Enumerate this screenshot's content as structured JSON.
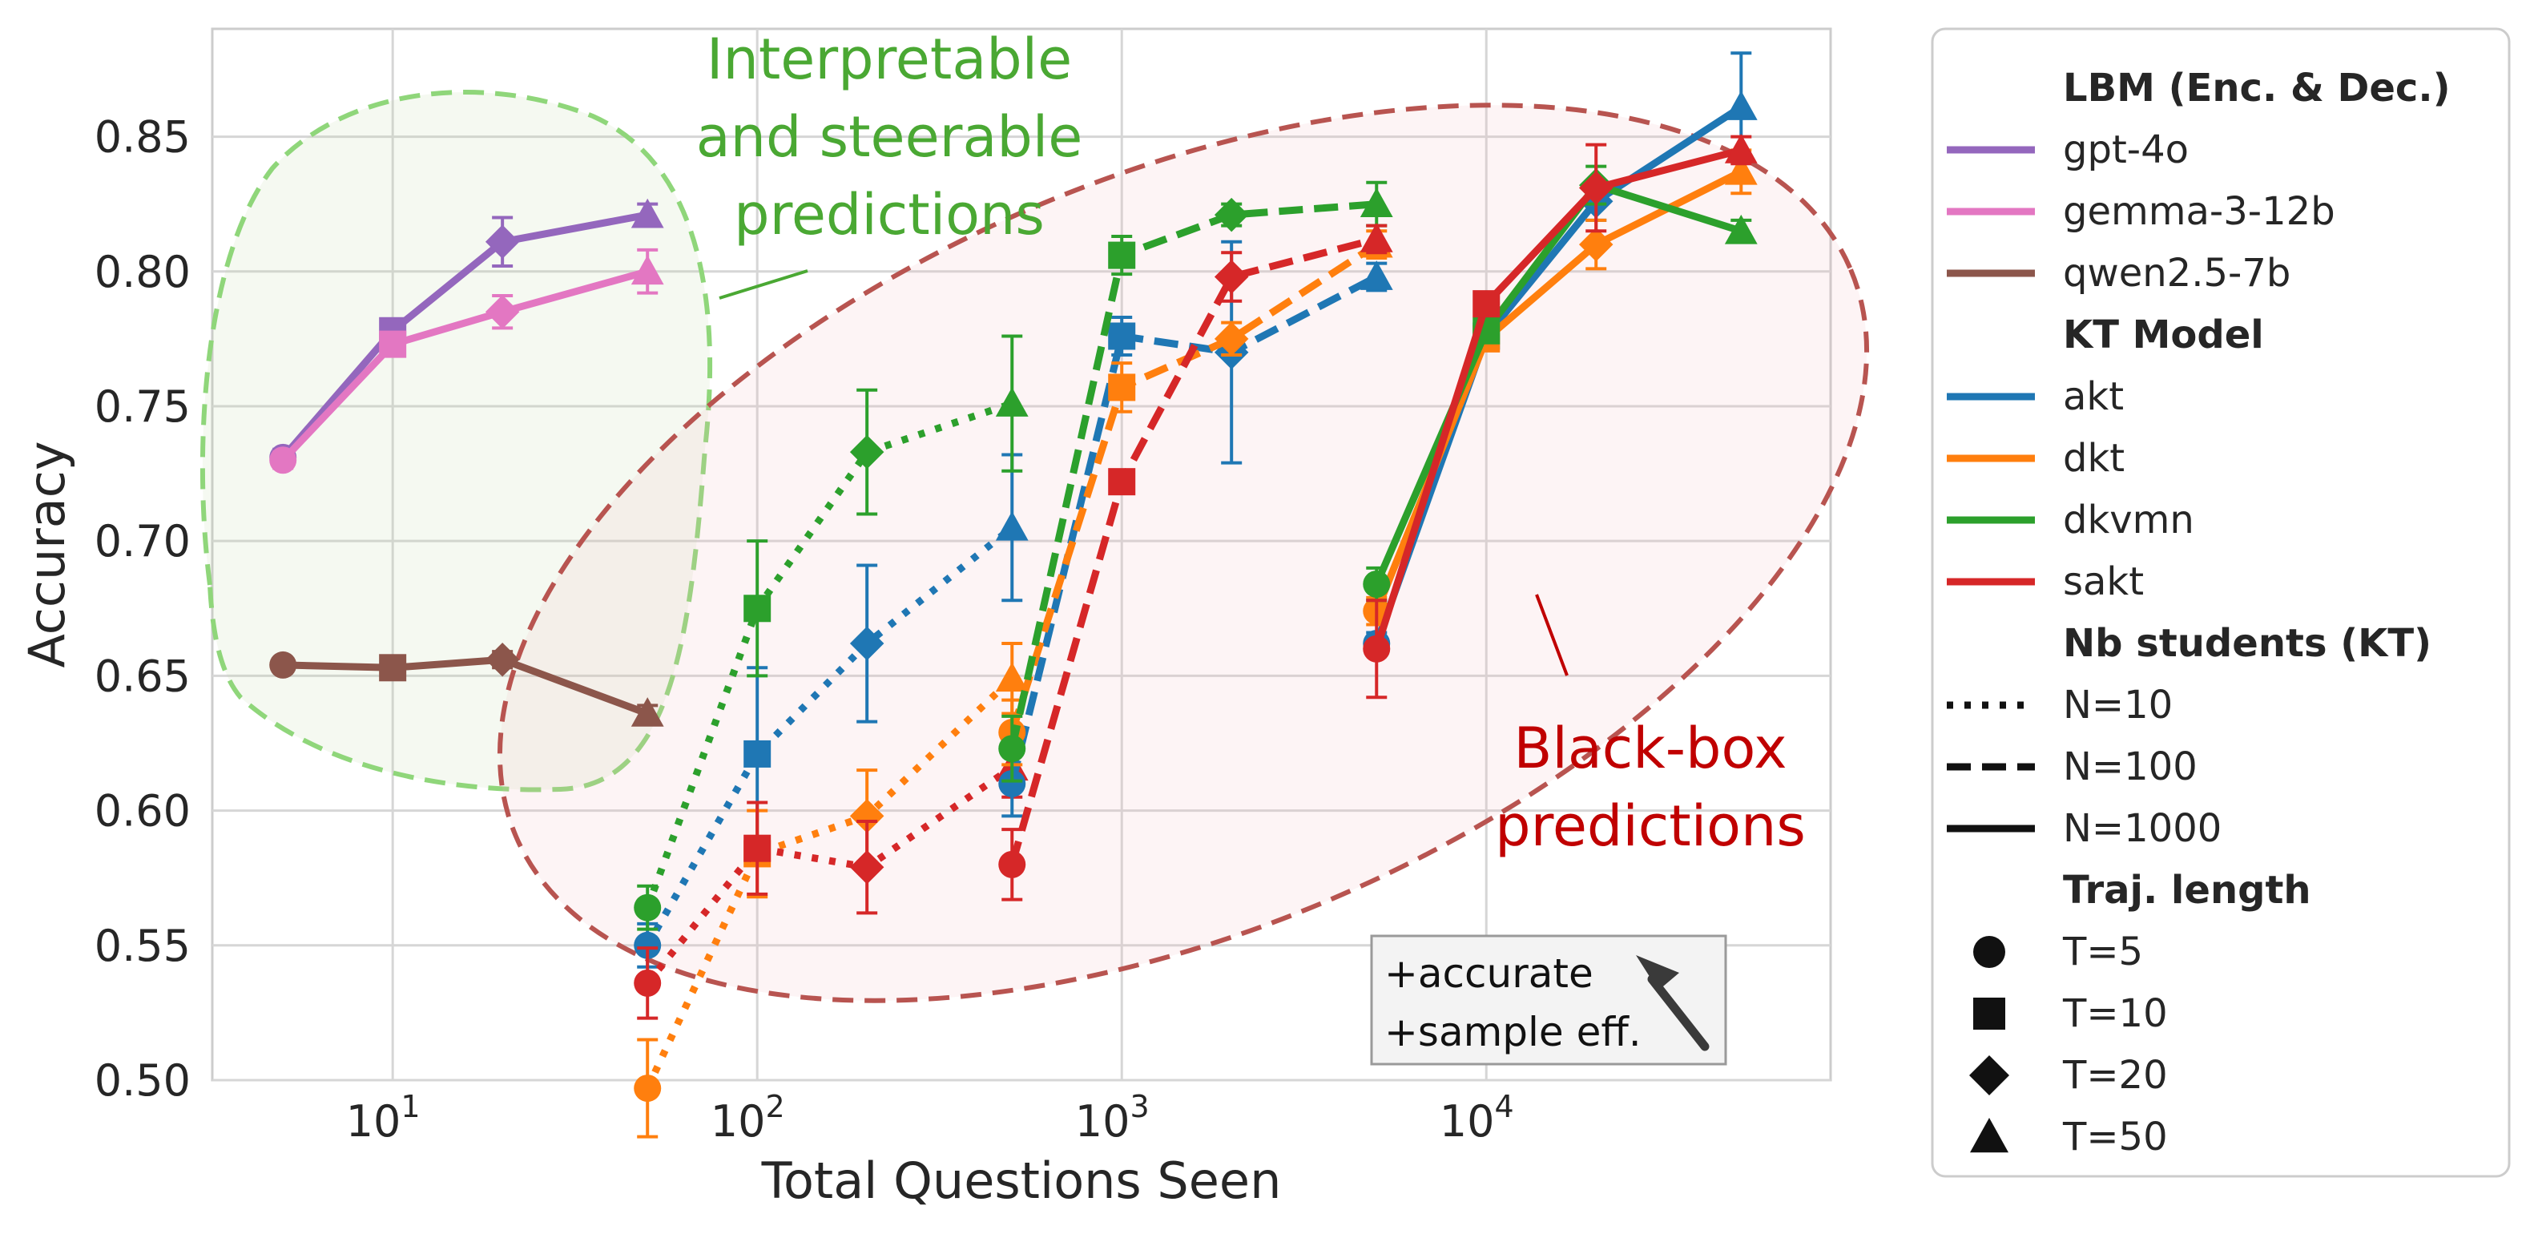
{
  "chart_data": {
    "type": "line",
    "xlabel": "Total Questions Seen",
    "ylabel": "Accuracy",
    "xscale": "log",
    "xlim": [
      3.2,
      88000
    ],
    "ylim": [
      0.5,
      0.89
    ],
    "grid": true,
    "x_ticks": [
      {
        "value": 10,
        "mantissa": "10",
        "exp": "1"
      },
      {
        "value": 100,
        "mantissa": "10",
        "exp": "2"
      },
      {
        "value": 1000,
        "mantissa": "10",
        "exp": "3"
      },
      {
        "value": 10000,
        "mantissa": "10",
        "exp": "4"
      }
    ],
    "y_ticks": [
      {
        "value": 0.5,
        "label": "0.50"
      },
      {
        "value": 0.55,
        "label": "0.55"
      },
      {
        "value": 0.6,
        "label": "0.60"
      },
      {
        "value": 0.65,
        "label": "0.65"
      },
      {
        "value": 0.7,
        "label": "0.70"
      },
      {
        "value": 0.75,
        "label": "0.75"
      },
      {
        "value": 0.8,
        "label": "0.80"
      },
      {
        "value": 0.85,
        "label": "0.85"
      }
    ],
    "annotations": {
      "interpretable": [
        "Interpretable",
        "and steerable",
        "predictions"
      ],
      "blackbox": [
        "Black-box",
        "predictions"
      ],
      "box": [
        "+accurate",
        "+sample eff."
      ]
    },
    "legend": {
      "placement": "outside right",
      "groups": [
        {
          "title": "LBM (Enc. & Dec.)",
          "entries": [
            {
              "label": "gpt-4o",
              "kind": "color",
              "color": "#9467bd"
            },
            {
              "label": "gemma-3-12b",
              "kind": "color",
              "color": "#e377c2"
            },
            {
              "label": "qwen2.5-7b",
              "kind": "color",
              "color": "#8c564b"
            }
          ]
        },
        {
          "title": "KT Model",
          "entries": [
            {
              "label": "akt",
              "kind": "color",
              "color": "#1f77b4"
            },
            {
              "label": "dkt",
              "kind": "color",
              "color": "#ff7f0e"
            },
            {
              "label": "dkvmn",
              "kind": "color",
              "color": "#2ca02c"
            },
            {
              "label": "sakt",
              "kind": "color",
              "color": "#d62728"
            }
          ]
        },
        {
          "title": "Nb students (KT)",
          "entries": [
            {
              "label": "N=10",
              "kind": "dash",
              "dash": "dotted"
            },
            {
              "label": "N=100",
              "kind": "dash",
              "dash": "dashed"
            },
            {
              "label": "N=1000",
              "kind": "dash",
              "dash": "solid"
            }
          ]
        },
        {
          "title": "Traj. length",
          "entries": [
            {
              "label": "T=5",
              "kind": "marker",
              "marker": "circle"
            },
            {
              "label": "T=10",
              "kind": "marker",
              "marker": "square"
            },
            {
              "label": "T=20",
              "kind": "marker",
              "marker": "diamond"
            },
            {
              "label": "T=50",
              "kind": "marker",
              "marker": "triangle"
            }
          ]
        }
      ]
    },
    "series": [
      {
        "name": "gpt-4o",
        "color": "#9467bd",
        "dash": "solid",
        "points": [
          {
            "x": 5,
            "y": 0.731,
            "marker": "circle",
            "err": 0.003
          },
          {
            "x": 10,
            "y": 0.778,
            "marker": "square",
            "err": 0.004
          },
          {
            "x": 20,
            "y": 0.811,
            "marker": "diamond",
            "err": 0.009
          },
          {
            "x": 50,
            "y": 0.821,
            "marker": "triangle",
            "err": 0.004
          }
        ]
      },
      {
        "name": "gemma-3-12b",
        "color": "#e377c2",
        "dash": "solid",
        "points": [
          {
            "x": 5,
            "y": 0.73,
            "marker": "circle",
            "err": 0.003
          },
          {
            "x": 10,
            "y": 0.773,
            "marker": "square",
            "err": 0.004
          },
          {
            "x": 20,
            "y": 0.785,
            "marker": "diamond",
            "err": 0.006
          },
          {
            "x": 50,
            "y": 0.8,
            "marker": "triangle",
            "err": 0.008
          }
        ]
      },
      {
        "name": "qwen2.5-7b",
        "color": "#8c564b",
        "dash": "solid",
        "points": [
          {
            "x": 5,
            "y": 0.654,
            "marker": "circle",
            "err": 0.002
          },
          {
            "x": 10,
            "y": 0.653,
            "marker": "square",
            "err": 0.002
          },
          {
            "x": 20,
            "y": 0.656,
            "marker": "diamond",
            "err": 0.003
          },
          {
            "x": 50,
            "y": 0.636,
            "marker": "triangle",
            "err": 0.003
          }
        ]
      },
      {
        "name": "akt N=10",
        "color": "#1f77b4",
        "dash": "dotted",
        "points": [
          {
            "x": 50,
            "y": 0.55,
            "marker": "circle",
            "err": 0.008
          },
          {
            "x": 100,
            "y": 0.621,
            "marker": "square",
            "err": 0.032
          },
          {
            "x": 200,
            "y": 0.662,
            "marker": "diamond",
            "err": 0.029
          },
          {
            "x": 500,
            "y": 0.705,
            "marker": "triangle",
            "err": 0.027
          }
        ]
      },
      {
        "name": "dkt N=10",
        "color": "#ff7f0e",
        "dash": "dotted",
        "points": [
          {
            "x": 50,
            "y": 0.497,
            "marker": "circle",
            "err": 0.018
          },
          {
            "x": 100,
            "y": 0.584,
            "marker": "square",
            "err": 0.016
          },
          {
            "x": 200,
            "y": 0.598,
            "marker": "diamond",
            "err": 0.017
          },
          {
            "x": 500,
            "y": 0.649,
            "marker": "triangle",
            "err": 0.013
          }
        ]
      },
      {
        "name": "dkvmn N=10",
        "color": "#2ca02c",
        "dash": "dotted",
        "points": [
          {
            "x": 50,
            "y": 0.564,
            "marker": "circle",
            "err": 0.008
          },
          {
            "x": 100,
            "y": 0.675,
            "marker": "square",
            "err": 0.025
          },
          {
            "x": 200,
            "y": 0.733,
            "marker": "diamond",
            "err": 0.023
          },
          {
            "x": 500,
            "y": 0.751,
            "marker": "triangle",
            "err": 0.025
          }
        ]
      },
      {
        "name": "sakt N=10",
        "color": "#d62728",
        "dash": "dotted",
        "points": [
          {
            "x": 50,
            "y": 0.536,
            "marker": "circle",
            "err": 0.013
          },
          {
            "x": 100,
            "y": 0.586,
            "marker": "square",
            "err": 0.017
          },
          {
            "x": 200,
            "y": 0.579,
            "marker": "diamond",
            "err": 0.017
          },
          {
            "x": 500,
            "y": 0.616,
            "marker": "triangle",
            "err": 0.011
          }
        ]
      },
      {
        "name": "akt N=100",
        "color": "#1f77b4",
        "dash": "dashed",
        "points": [
          {
            "x": 500,
            "y": 0.61,
            "marker": "circle",
            "err": 0.012
          },
          {
            "x": 1000,
            "y": 0.776,
            "marker": "square",
            "err": 0.007
          },
          {
            "x": 2000,
            "y": 0.77,
            "marker": "diamond",
            "err": 0.041
          },
          {
            "x": 5000,
            "y": 0.798,
            "marker": "triangle",
            "err": 0.005
          }
        ]
      },
      {
        "name": "dkt N=100",
        "color": "#ff7f0e",
        "dash": "dashed",
        "points": [
          {
            "x": 500,
            "y": 0.629,
            "marker": "circle",
            "err": 0.012
          },
          {
            "x": 1000,
            "y": 0.757,
            "marker": "square",
            "err": 0.009
          },
          {
            "x": 2000,
            "y": 0.775,
            "marker": "diamond",
            "err": 0.006
          },
          {
            "x": 5000,
            "y": 0.81,
            "marker": "triangle",
            "err": 0.005
          }
        ]
      },
      {
        "name": "dkvmn N=100",
        "color": "#2ca02c",
        "dash": "dashed",
        "points": [
          {
            "x": 500,
            "y": 0.623,
            "marker": "circle",
            "err": 0.012
          },
          {
            "x": 1000,
            "y": 0.806,
            "marker": "square",
            "err": 0.007
          },
          {
            "x": 2000,
            "y": 0.821,
            "marker": "diamond",
            "err": 0.004
          },
          {
            "x": 5000,
            "y": 0.825,
            "marker": "triangle",
            "err": 0.008
          }
        ]
      },
      {
        "name": "sakt N=100",
        "color": "#d62728",
        "dash": "dashed",
        "points": [
          {
            "x": 500,
            "y": 0.58,
            "marker": "circle",
            "err": 0.013
          },
          {
            "x": 1000,
            "y": 0.722,
            "marker": "square",
            "err": 0.003
          },
          {
            "x": 2000,
            "y": 0.798,
            "marker": "diamond",
            "err": 0.009
          },
          {
            "x": 5000,
            "y": 0.812,
            "marker": "triangle",
            "err": 0.005
          }
        ]
      },
      {
        "name": "akt N=1000",
        "color": "#1f77b4",
        "dash": "solid",
        "points": [
          {
            "x": 5000,
            "y": 0.662,
            "marker": "circle",
            "err": 0.004
          },
          {
            "x": 10000,
            "y": 0.776,
            "marker": "square",
            "err": 0.004
          },
          {
            "x": 20000,
            "y": 0.826,
            "marker": "diamond",
            "err": 0.007
          },
          {
            "x": 50000,
            "y": 0.861,
            "marker": "triangle",
            "err": 0.02
          }
        ]
      },
      {
        "name": "dkt N=1000",
        "color": "#ff7f0e",
        "dash": "solid",
        "points": [
          {
            "x": 5000,
            "y": 0.674,
            "marker": "circle",
            "err": 0.005
          },
          {
            "x": 10000,
            "y": 0.775,
            "marker": "square",
            "err": 0.004
          },
          {
            "x": 20000,
            "y": 0.81,
            "marker": "diamond",
            "err": 0.009
          },
          {
            "x": 50000,
            "y": 0.837,
            "marker": "triangle",
            "err": 0.008
          }
        ]
      },
      {
        "name": "dkvmn N=1000",
        "color": "#2ca02c",
        "dash": "solid",
        "points": [
          {
            "x": 5000,
            "y": 0.684,
            "marker": "circle",
            "err": 0.006
          },
          {
            "x": 10000,
            "y": 0.778,
            "marker": "square",
            "err": 0.004
          },
          {
            "x": 20000,
            "y": 0.832,
            "marker": "diamond",
            "err": 0.007
          },
          {
            "x": 50000,
            "y": 0.815,
            "marker": "triangle",
            "err": 0.004
          }
        ]
      },
      {
        "name": "sakt N=1000",
        "color": "#d62728",
        "dash": "solid",
        "points": [
          {
            "x": 5000,
            "y": 0.66,
            "marker": "circle",
            "err": 0.018
          },
          {
            "x": 10000,
            "y": 0.788,
            "marker": "square",
            "err": 0.004
          },
          {
            "x": 20000,
            "y": 0.831,
            "marker": "diamond",
            "err": 0.016
          },
          {
            "x": 50000,
            "y": 0.845,
            "marker": "triangle",
            "err": 0.005
          }
        ]
      }
    ]
  }
}
